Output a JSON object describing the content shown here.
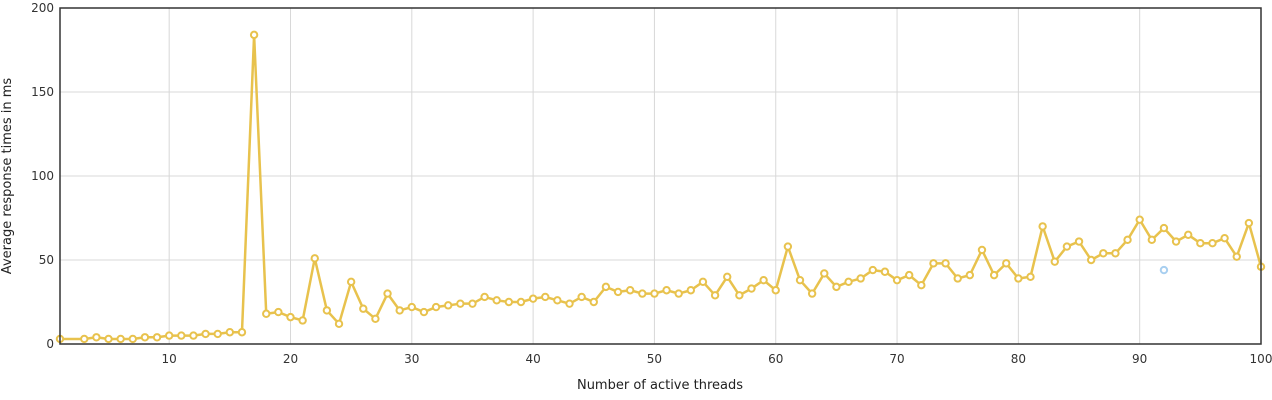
{
  "chart_data": {
    "type": "line",
    "xlabel": "Number of active threads",
    "ylabel": "Average response times in ms",
    "xlim": [
      1,
      100
    ],
    "ylim": [
      0,
      200
    ],
    "x_ticks": [
      10,
      20,
      30,
      40,
      50,
      60,
      70,
      80,
      90,
      100
    ],
    "y_ticks": [
      0,
      50,
      100,
      150,
      200
    ],
    "grid": true,
    "series": [
      {
        "color": "#e8c24d",
        "points": [
          [
            1,
            3
          ],
          [
            3,
            3
          ],
          [
            4,
            4
          ],
          [
            5,
            3
          ],
          [
            6,
            3
          ],
          [
            7,
            3
          ],
          [
            8,
            4
          ],
          [
            9,
            4
          ],
          [
            10,
            5
          ],
          [
            11,
            5
          ],
          [
            12,
            5
          ],
          [
            13,
            6
          ],
          [
            14,
            6
          ],
          [
            15,
            7
          ],
          [
            16,
            7
          ],
          [
            17,
            184
          ],
          [
            18,
            18
          ],
          [
            19,
            19
          ],
          [
            20,
            16
          ],
          [
            21,
            14
          ],
          [
            22,
            51
          ],
          [
            23,
            20
          ],
          [
            24,
            12
          ],
          [
            25,
            37
          ],
          [
            26,
            21
          ],
          [
            27,
            15
          ],
          [
            28,
            30
          ],
          [
            29,
            20
          ],
          [
            30,
            22
          ],
          [
            31,
            19
          ],
          [
            32,
            22
          ],
          [
            33,
            23
          ],
          [
            34,
            24
          ],
          [
            35,
            24
          ],
          [
            36,
            28
          ],
          [
            37,
            26
          ],
          [
            38,
            25
          ],
          [
            39,
            25
          ],
          [
            40,
            27
          ],
          [
            41,
            28
          ],
          [
            42,
            26
          ],
          [
            43,
            24
          ],
          [
            44,
            28
          ],
          [
            45,
            25
          ],
          [
            46,
            34
          ],
          [
            47,
            31
          ],
          [
            48,
            32
          ],
          [
            49,
            30
          ],
          [
            50,
            30
          ],
          [
            51,
            32
          ],
          [
            52,
            30
          ],
          [
            53,
            32
          ],
          [
            54,
            37
          ],
          [
            55,
            29
          ],
          [
            56,
            40
          ],
          [
            57,
            29
          ],
          [
            58,
            33
          ],
          [
            59,
            38
          ],
          [
            60,
            32
          ],
          [
            61,
            58
          ],
          [
            62,
            38
          ],
          [
            63,
            30
          ],
          [
            64,
            42
          ],
          [
            65,
            34
          ],
          [
            66,
            37
          ],
          [
            67,
            39
          ],
          [
            68,
            44
          ],
          [
            69,
            43
          ],
          [
            70,
            38
          ],
          [
            71,
            41
          ],
          [
            72,
            35
          ],
          [
            73,
            48
          ],
          [
            74,
            48
          ],
          [
            75,
            39
          ],
          [
            76,
            41
          ],
          [
            77,
            56
          ],
          [
            78,
            41
          ],
          [
            79,
            48
          ],
          [
            80,
            39
          ],
          [
            81,
            40
          ],
          [
            82,
            70
          ],
          [
            83,
            49
          ],
          [
            84,
            58
          ],
          [
            85,
            61
          ],
          [
            86,
            50
          ],
          [
            87,
            54
          ],
          [
            88,
            54
          ],
          [
            89,
            62
          ],
          [
            90,
            74
          ],
          [
            91,
            62
          ],
          [
            92,
            69
          ],
          [
            93,
            61
          ],
          [
            94,
            65
          ],
          [
            95,
            60
          ],
          [
            96,
            60
          ],
          [
            97,
            63
          ],
          [
            98,
            52
          ],
          [
            99,
            72
          ],
          [
            100,
            46
          ]
        ]
      },
      {
        "color": "#a8cff0",
        "points": [
          [
            92,
            44
          ]
        ]
      }
    ]
  }
}
